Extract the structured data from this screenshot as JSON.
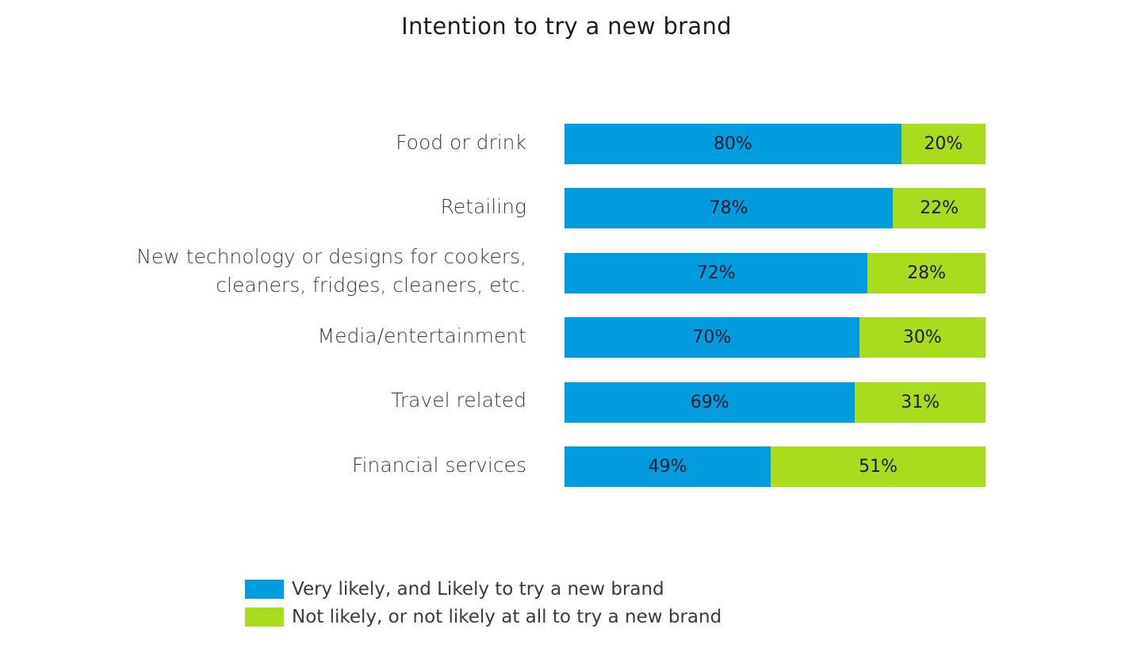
{
  "chart_data": {
    "type": "bar",
    "orientation": "horizontal",
    "stacked": true,
    "title": "Intention to try a new brand",
    "categories": [
      "Food or drink",
      "Retailing",
      "New technology or designs for cookers,\ncleaners, fridges, cleaners, etc.",
      "Media/entertainment",
      "Travel related",
      "Financial services"
    ],
    "series": [
      {
        "name": "Very likely, and Likely to try a new brand",
        "color": "#009CDE",
        "values": [
          80,
          78,
          72,
          70,
          69,
          49
        ],
        "labels": [
          "80%",
          "78%",
          "72%",
          "70%",
          "69%",
          "49%"
        ]
      },
      {
        "name": "Not likely, or not likely at all to try a new brand",
        "color": "#AADC1E",
        "values": [
          20,
          22,
          28,
          30,
          31,
          51
        ],
        "labels": [
          "20%",
          "22%",
          "28%",
          "30%",
          "31%",
          "51%"
        ]
      }
    ],
    "xlim": [
      0,
      100
    ],
    "unit": "%",
    "grid": false,
    "legend_position": "bottom-left"
  }
}
